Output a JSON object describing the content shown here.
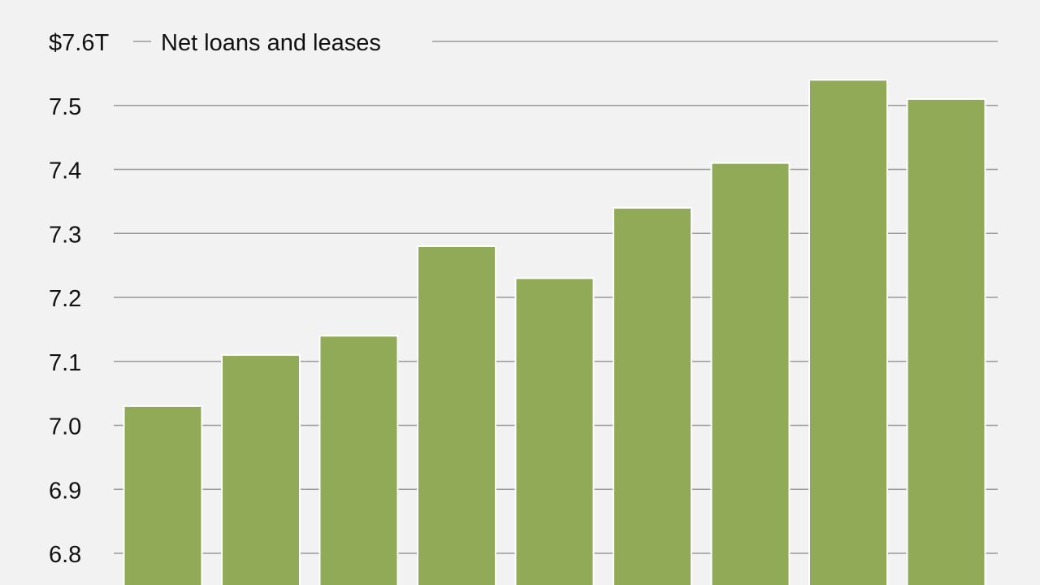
{
  "chart_data": {
    "type": "bar",
    "title": "Net loans and leases",
    "top_tick_label": "$7.6T",
    "y_tick_labels": [
      "7.5",
      "7.4",
      "7.3",
      "7.2",
      "7.1",
      "7.0",
      "6.9",
      "6.8"
    ],
    "y_ticks": [
      7.6,
      7.5,
      7.4,
      7.3,
      7.2,
      7.1,
      7.0,
      6.9,
      6.8
    ],
    "ylim": [
      6.8,
      7.6
    ],
    "grid": true,
    "bar_color": "#91aa58",
    "background": "#f2f2f3",
    "values": [
      7.03,
      7.11,
      7.14,
      7.28,
      7.23,
      7.34,
      7.41,
      7.54,
      7.51
    ]
  }
}
